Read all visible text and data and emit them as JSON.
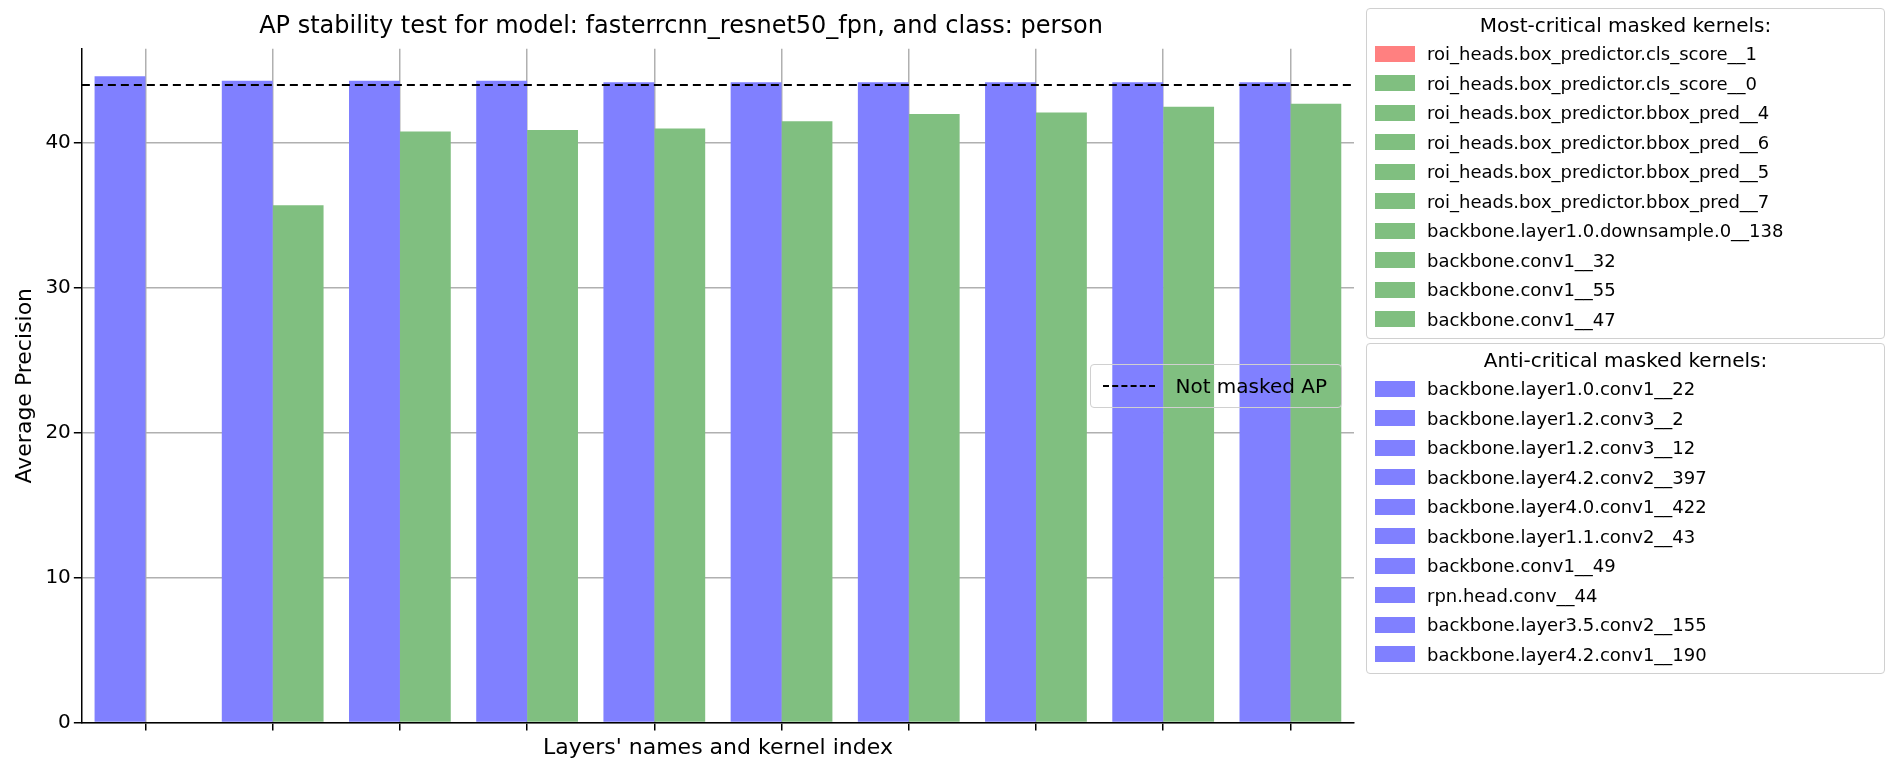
{
  "chart_data": {
    "type": "bar",
    "title": "AP stability test for model: fasterrcnn_resnet50_fpn, and class: person",
    "xlabel": "Layers' names and kernel index",
    "ylabel": "Average Precision",
    "categories": [
      null,
      null,
      null,
      null,
      null,
      null,
      null,
      null,
      null,
      null
    ],
    "legend_title": [
      "Most-critical masked kernels:",
      "Anti-critical masked kernels:"
    ],
    "series": [
      {
        "name": "roi_heads.box_predictor.cls_score__1",
        "color": "#ff8080",
        "values": [
          0,
          null,
          null,
          null,
          null,
          null,
          null,
          null,
          null,
          null
        ]
      },
      {
        "name": "roi_heads.box_predictor.cls_score__0",
        "color": "#80bf80",
        "values": [
          null,
          35.7,
          null,
          null,
          null,
          null,
          null,
          null,
          null,
          null
        ]
      },
      {
        "name": "roi_heads.box_predictor.bbox_pred__4",
        "color": "#80bf80",
        "values": [
          null,
          null,
          40.8,
          null,
          null,
          null,
          null,
          null,
          null,
          null
        ]
      },
      {
        "name": "roi_heads.box_predictor.bbox_pred__6",
        "color": "#80bf80",
        "values": [
          null,
          null,
          null,
          40.9,
          null,
          null,
          null,
          null,
          null,
          null
        ]
      },
      {
        "name": "roi_heads.box_predictor.bbox_pred__5",
        "color": "#80bf80",
        "values": [
          null,
          null,
          null,
          null,
          41.0,
          null,
          null,
          null,
          null,
          null
        ]
      },
      {
        "name": "roi_heads.box_predictor.bbox_pred__7",
        "color": "#80bf80",
        "values": [
          null,
          null,
          null,
          null,
          null,
          41.5,
          null,
          null,
          null,
          null
        ]
      },
      {
        "name": "backbone.layer1.0.downsample.0__138",
        "color": "#80bf80",
        "values": [
          null,
          null,
          null,
          null,
          null,
          null,
          42.0,
          null,
          null,
          null
        ]
      },
      {
        "name": "backbone.conv1__32",
        "color": "#80bf80",
        "values": [
          null,
          null,
          null,
          null,
          null,
          null,
          null,
          42.1,
          null,
          null
        ]
      },
      {
        "name": "backbone.conv1__55",
        "color": "#80bf80",
        "values": [
          null,
          null,
          null,
          null,
          null,
          null,
          null,
          null,
          42.5,
          null
        ]
      },
      {
        "name": "backbone.conv1__47",
        "color": "#80bf80",
        "values": [
          null,
          null,
          null,
          null,
          null,
          null,
          null,
          null,
          null,
          42.7
        ]
      },
      {
        "name": "backbone.layer1.0.conv1__22",
        "color": "#8080ff",
        "values": [
          44.6,
          null,
          null,
          null,
          null,
          null,
          null,
          null,
          null,
          null
        ]
      },
      {
        "name": "backbone.layer1.2.conv3__2",
        "color": "#8080ff",
        "values": [
          null,
          44.3,
          null,
          null,
          null,
          null,
          null,
          null,
          null,
          null
        ]
      },
      {
        "name": "backbone.layer1.2.conv3__12",
        "color": "#8080ff",
        "values": [
          null,
          null,
          44.3,
          null,
          null,
          null,
          null,
          null,
          null,
          null
        ]
      },
      {
        "name": "backbone.layer4.2.conv2__397",
        "color": "#8080ff",
        "values": [
          null,
          null,
          null,
          44.3,
          null,
          null,
          null,
          null,
          null,
          null
        ]
      },
      {
        "name": "backbone.layer4.0.conv1__422",
        "color": "#8080ff",
        "values": [
          null,
          null,
          null,
          null,
          44.2,
          null,
          null,
          null,
          null,
          null
        ]
      },
      {
        "name": "backbone.layer1.1.conv2__43",
        "color": "#8080ff",
        "values": [
          null,
          null,
          null,
          null,
          null,
          44.2,
          null,
          null,
          null,
          null
        ]
      },
      {
        "name": "backbone.conv1__49",
        "color": "#8080ff",
        "values": [
          null,
          null,
          null,
          null,
          null,
          null,
          44.2,
          null,
          null,
          null
        ]
      },
      {
        "name": "rpn.head.conv__44",
        "color": "#8080ff",
        "values": [
          null,
          null,
          null,
          null,
          null,
          null,
          null,
          44.2,
          null,
          null
        ]
      },
      {
        "name": "backbone.layer3.5.conv2__155",
        "color": "#8080ff",
        "values": [
          null,
          null,
          null,
          null,
          null,
          null,
          null,
          null,
          44.2,
          null
        ]
      },
      {
        "name": "backbone.layer4.2.conv1__190",
        "color": "#8080ff",
        "values": [
          null,
          null,
          null,
          null,
          null,
          null,
          null,
          null,
          null,
          44.2
        ]
      }
    ],
    "ref_lines": [
      {
        "axis": "y",
        "value": 44.0,
        "label": "Not masked AP",
        "color": "#000000",
        "line_style": "dashed"
      }
    ],
    "ylim": [
      0,
      46.5
    ],
    "yticks": [
      0,
      10,
      20,
      30,
      40
    ],
    "grid": true,
    "legend": "right",
    "tick_labels": "y"
  }
}
